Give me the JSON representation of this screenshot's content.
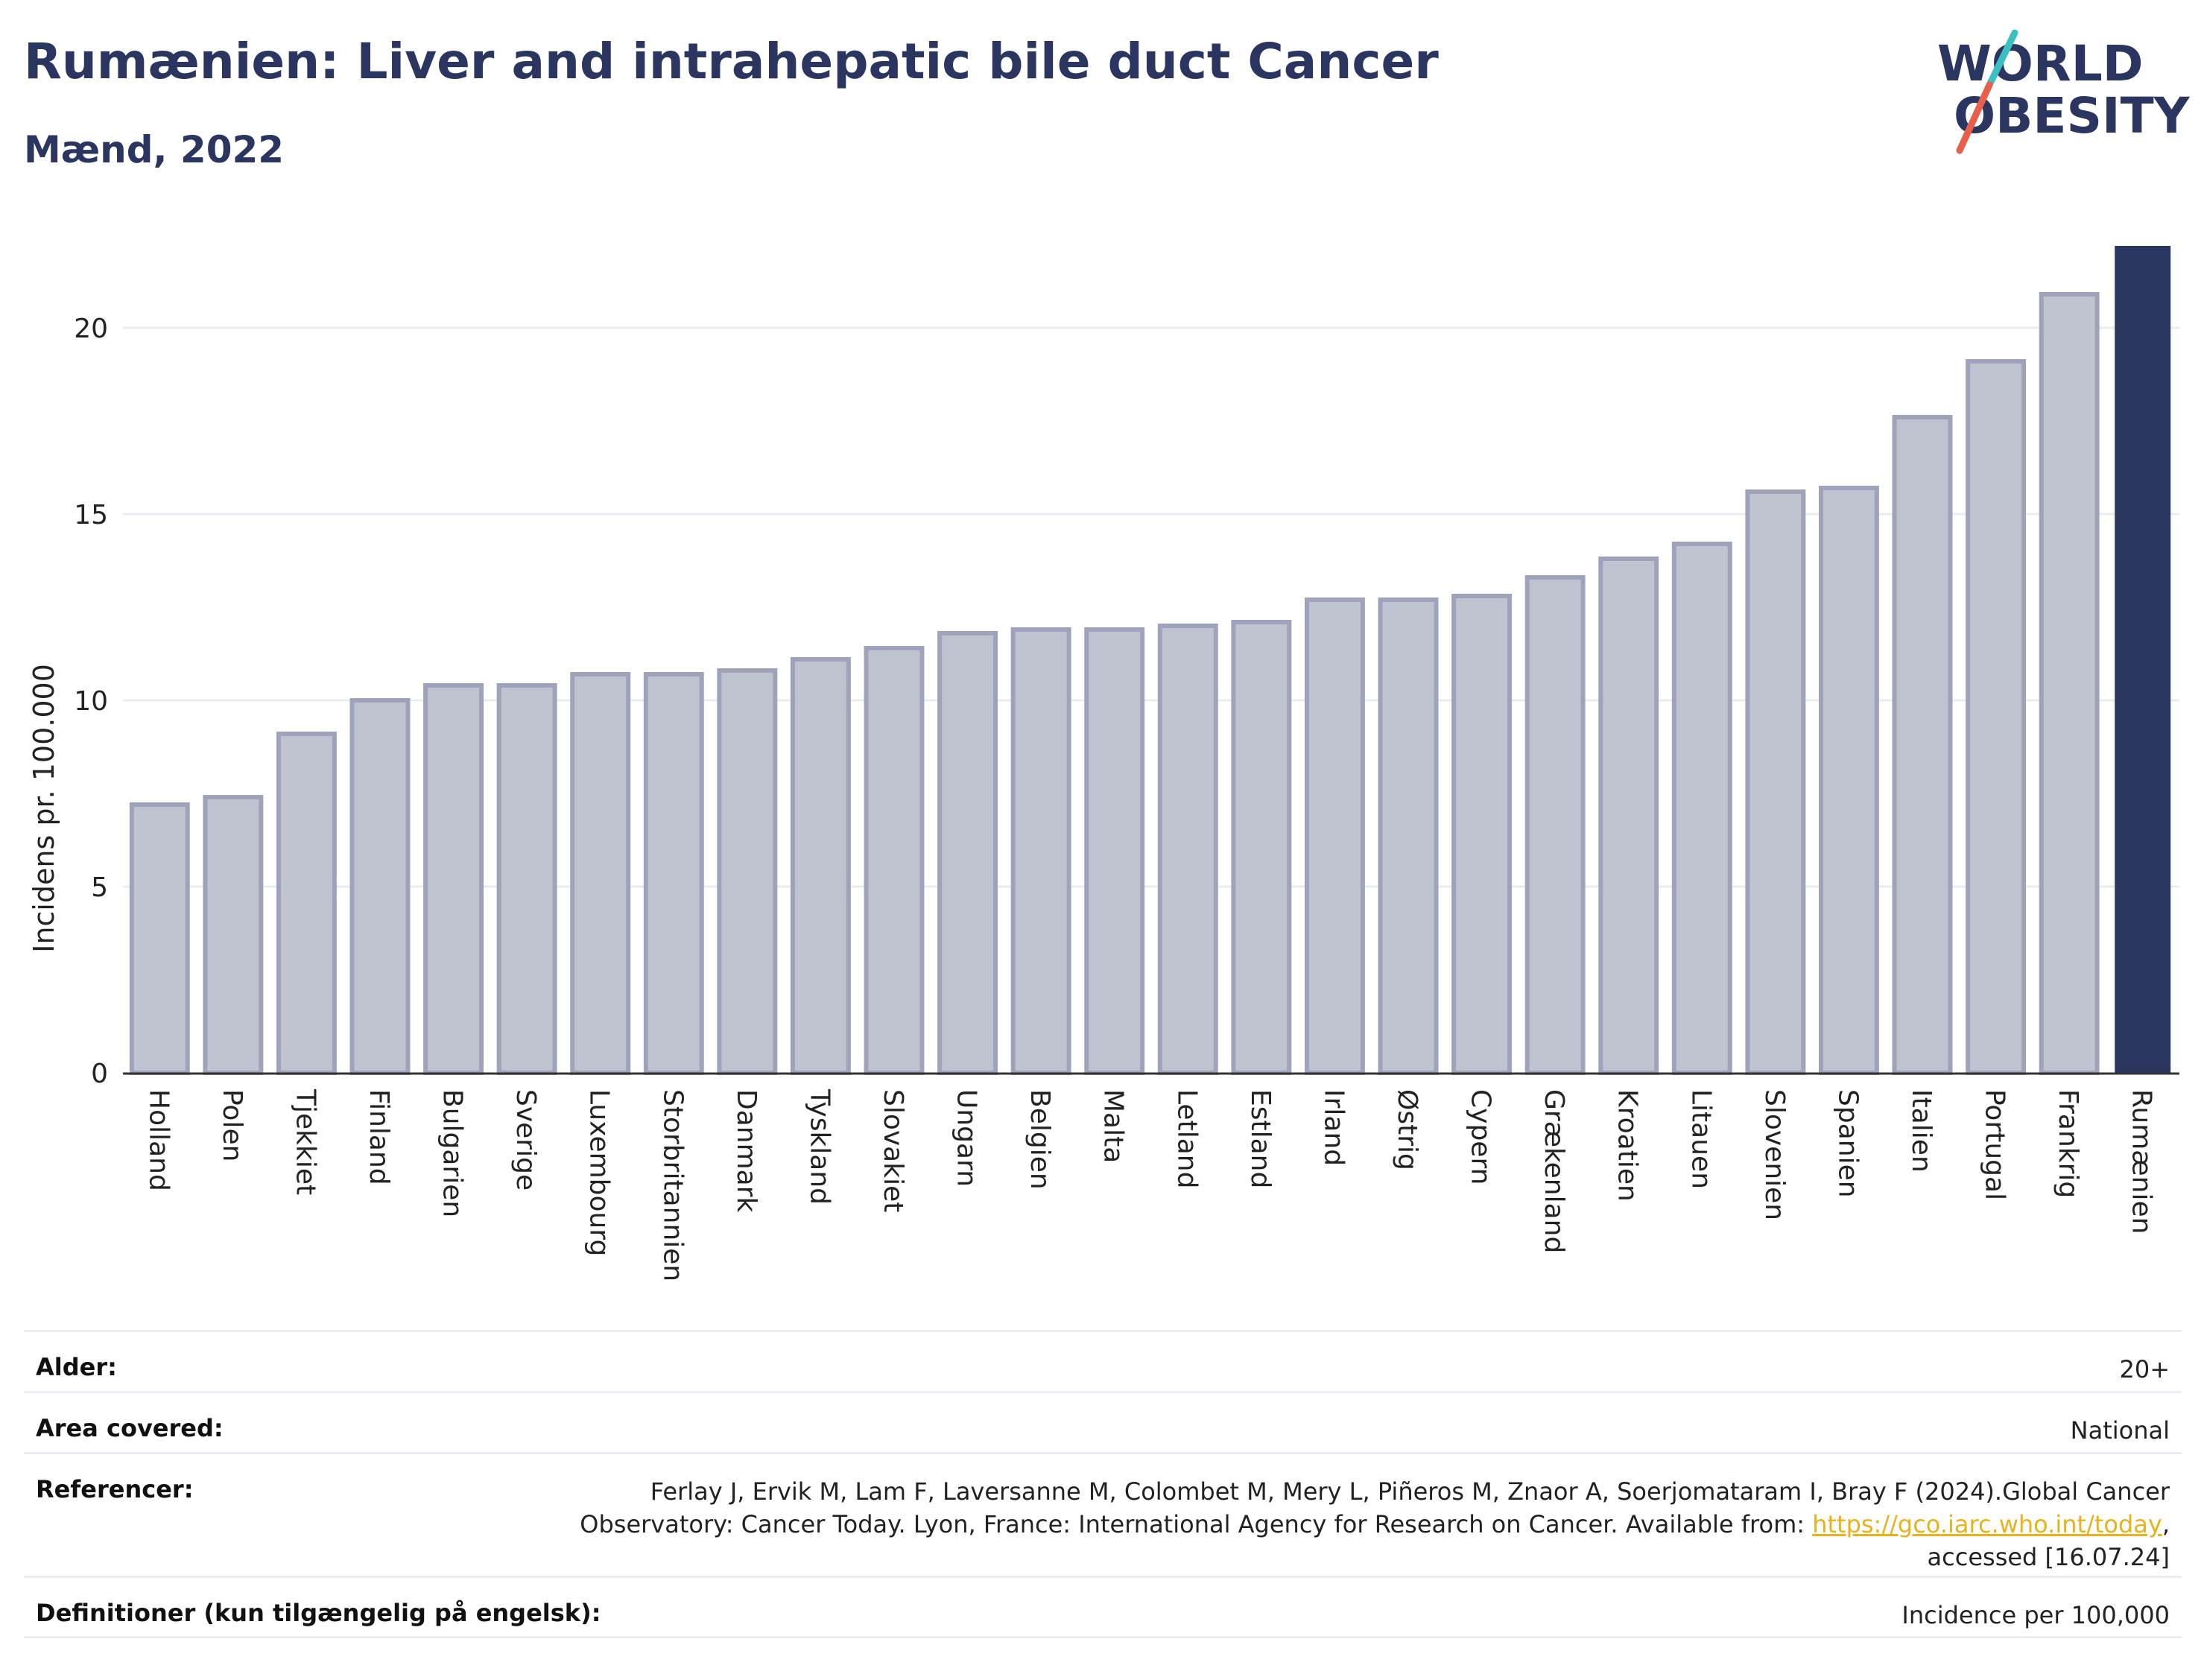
{
  "header": {
    "title": "Rumænien: Liver and intrahepatic bile duct Cancer",
    "subtitle": "Mænd, 2022"
  },
  "logo": {
    "line1": "WORLD",
    "line2": "OBESITY",
    "colors": {
      "text": "#2a3560",
      "slash_teal": "#3bbfc1",
      "slash_red": "#e8604c"
    }
  },
  "colors": {
    "bar_fill": "#bfc2cf",
    "bar_stroke": "#9ea3bb",
    "highlight": "#2a3560",
    "grid": "#e8ecf2",
    "axis_text": "#222222"
  },
  "chart_data": {
    "type": "bar",
    "title": "",
    "xlabel": "",
    "ylabel": "Incidens pr. 100.000",
    "ylim": [
      0,
      22.2
    ],
    "yticks": [
      0,
      5,
      10,
      15,
      20
    ],
    "grid": true,
    "highlight_category": "Rumænien",
    "categories": [
      "Holland",
      "Polen",
      "Tjekkiet",
      "Finland",
      "Bulgarien",
      "Sverige",
      "Luxembourg",
      "Storbritannien",
      "Danmark",
      "Tyskland",
      "Slovakiet",
      "Ungarn",
      "Belgien",
      "Malta",
      "Letland",
      "Estland",
      "Irland",
      "Østrig",
      "Cypern",
      "Grækenland",
      "Kroatien",
      "Litauen",
      "Slovenien",
      "Spanien",
      "Italien",
      "Portugal",
      "Frankrig",
      "Rumænien"
    ],
    "values": [
      7.2,
      7.4,
      9.1,
      10.0,
      10.4,
      10.4,
      10.7,
      10.7,
      10.8,
      11.1,
      11.4,
      11.8,
      11.9,
      11.9,
      12.0,
      12.1,
      12.7,
      12.7,
      12.8,
      13.3,
      13.8,
      14.2,
      15.6,
      15.7,
      17.6,
      19.1,
      20.9,
      22.2
    ]
  },
  "info": {
    "age_label": "Alder:",
    "age_value": "20+",
    "area_label": "Area covered:",
    "area_value": "National",
    "ref_label": "Referencer:",
    "ref_line1": "Ferlay J, Ervik M, Lam F, Laversanne M, Colombet M, Mery L, Piñeros M, Znaor A, Soerjomataram I, Bray F (2024).Global Cancer",
    "ref_line2_pre": "Observatory: Cancer Today. Lyon, France: International Agency for Research on Cancer. Available from: ",
    "ref_link": "https://gco.iarc.who.int/today",
    "ref_line2_post": ",",
    "ref_line3": "accessed [16.07.24]",
    "def_label": "Definitioner (kun tilgængelig på engelsk):",
    "def_value": "Incidence per 100,000"
  }
}
